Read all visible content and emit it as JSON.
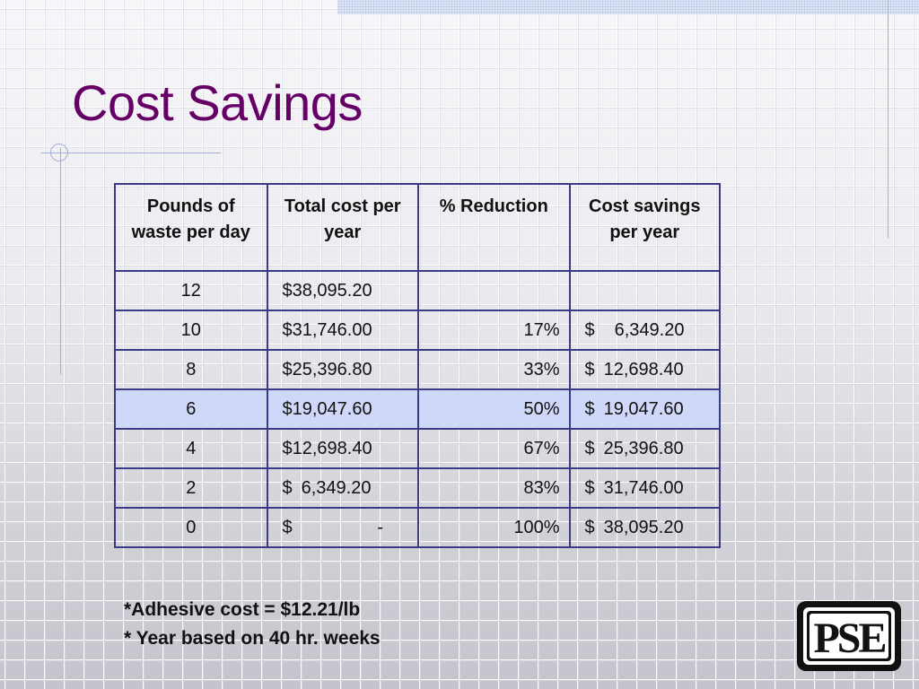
{
  "slide": {
    "title": "Cost Savings"
  },
  "table": {
    "headers": [
      "Pounds of waste per day",
      "Total cost per year",
      "% Reduction",
      "Cost savings per year"
    ],
    "rows": [
      {
        "pounds": "12",
        "total_currency": "",
        "total_amount": "$38,095.20",
        "reduction": "",
        "savings_currency": "",
        "savings_amount": ""
      },
      {
        "pounds": "10",
        "total_currency": "",
        "total_amount": "$31,746.00",
        "reduction": "17%",
        "savings_currency": "$",
        "savings_amount": "6,349.20"
      },
      {
        "pounds": "8",
        "total_currency": "",
        "total_amount": "$25,396.80",
        "reduction": "33%",
        "savings_currency": "$",
        "savings_amount": "12,698.40"
      },
      {
        "pounds": "6",
        "total_currency": "",
        "total_amount": "$19,047.60",
        "reduction": "50%",
        "savings_currency": "$",
        "savings_amount": "19,047.60"
      },
      {
        "pounds": "4",
        "total_currency": "",
        "total_amount": "$12,698.40",
        "reduction": "67%",
        "savings_currency": "$",
        "savings_amount": "25,396.80"
      },
      {
        "pounds": "2",
        "total_currency": "$",
        "total_amount": "6,349.20",
        "reduction": "83%",
        "savings_currency": "$",
        "savings_amount": "31,746.00"
      },
      {
        "pounds": "0",
        "total_currency": "$",
        "total_amount": "-",
        "reduction": "100%",
        "savings_currency": "$",
        "savings_amount": "38,095.20"
      }
    ],
    "highlighted_row_index": 3
  },
  "footnotes": [
    "*Adhesive cost = $12.21/lb",
    "* Year based on 40 hr. weeks"
  ],
  "logo": {
    "text": "PSE"
  },
  "colors": {
    "title": "#660066",
    "table_border": "#3a3a86",
    "highlight_row": "#cfd8f8",
    "decorative_lines": "#9fb0dc"
  }
}
